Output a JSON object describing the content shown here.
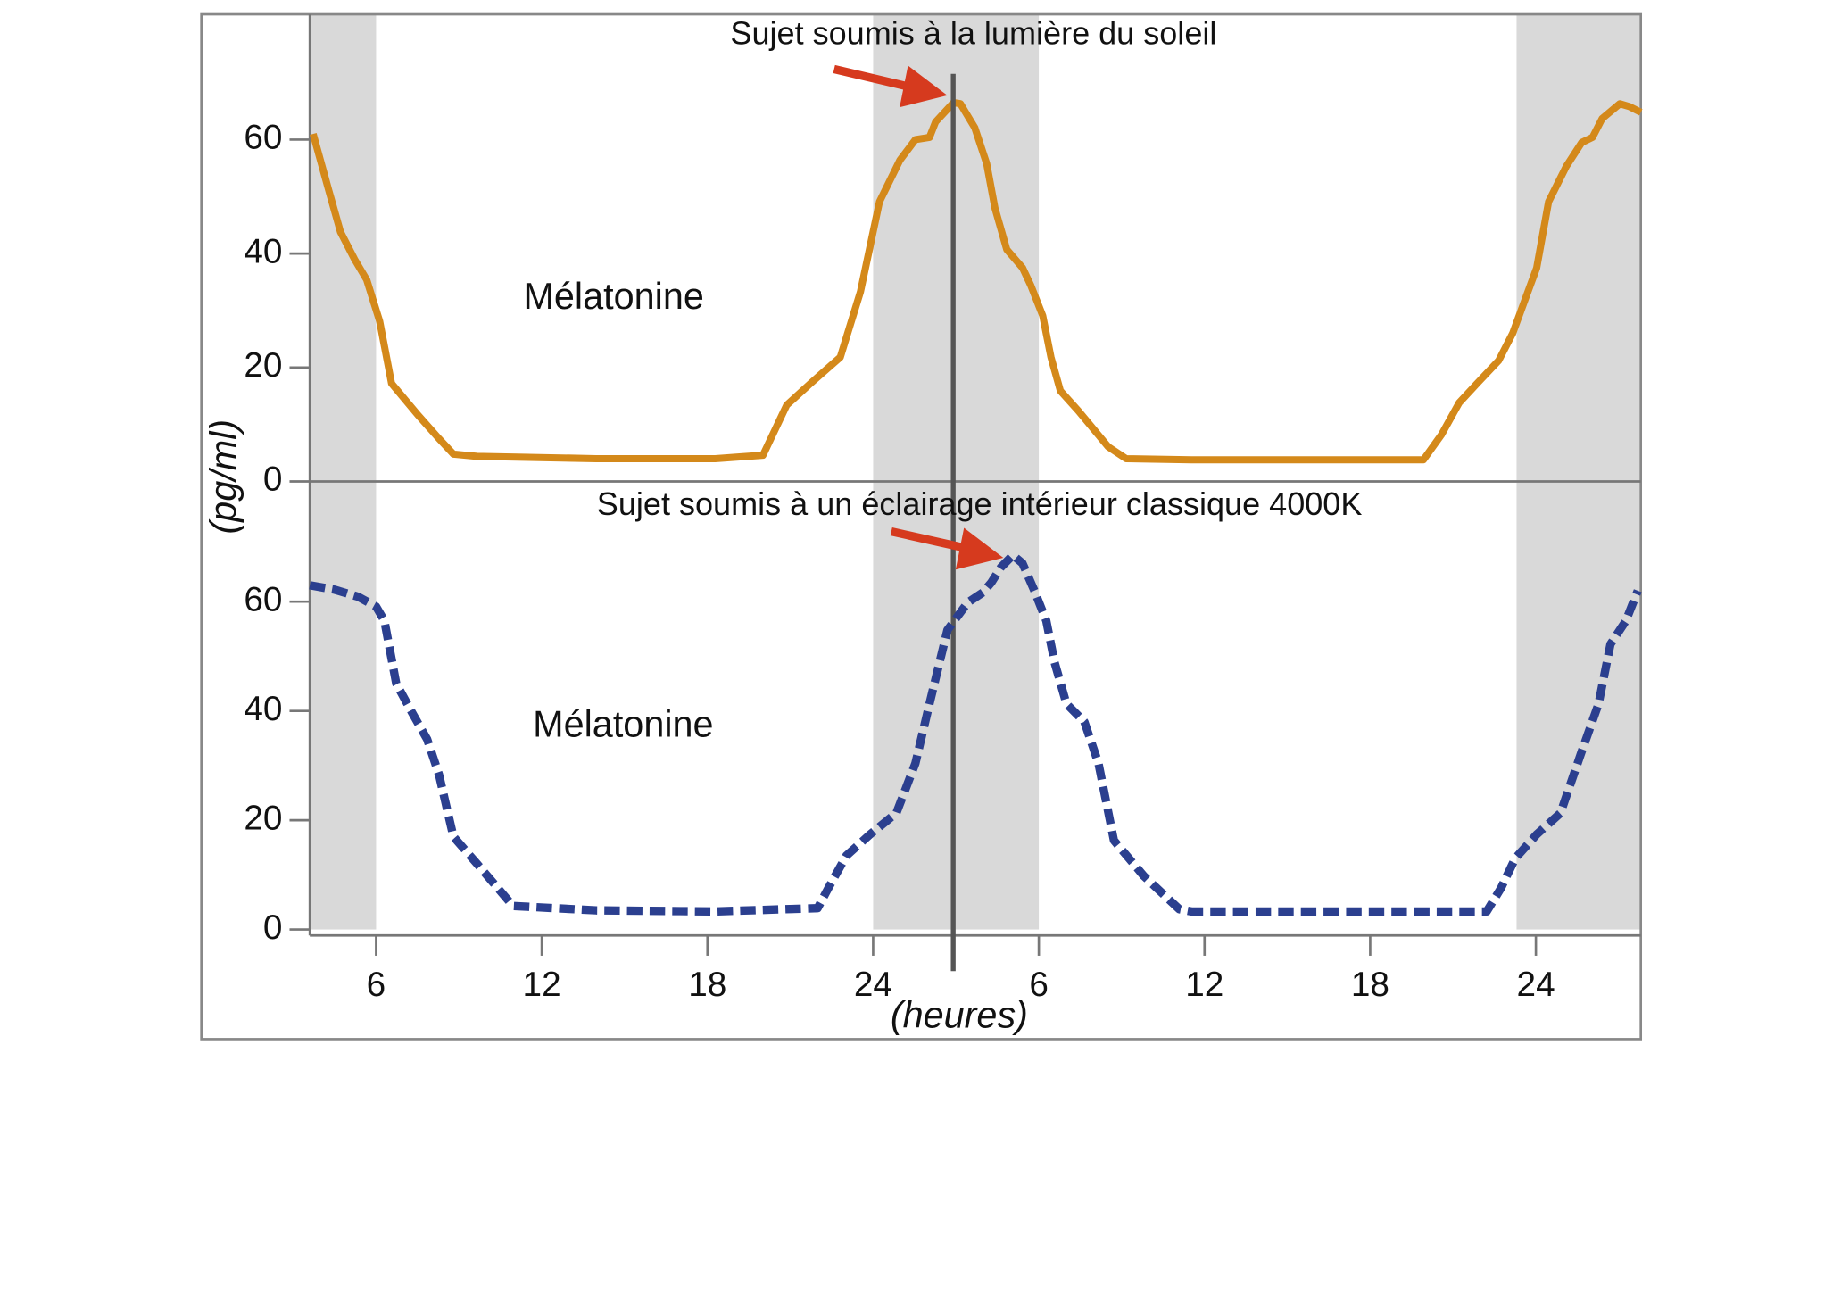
{
  "chart_data": [
    {
      "type": "line",
      "title": "Sujet soumis à la lumière du soleil",
      "ylabel": "(pg/ml)",
      "xlim": [
        3.6,
        51.8
      ],
      "ylim": [
        0,
        82
      ],
      "yticks": [
        0,
        20,
        40,
        60
      ],
      "shaded_x": [
        [
          3.6,
          6
        ],
        [
          24,
          30
        ],
        [
          47.3,
          51.8
        ]
      ],
      "marker_x": 26.9,
      "series": [
        {
          "name": "Mélatonine",
          "color": "#d4891a",
          "line_style": "solid",
          "x": [
            3.72,
            4.28,
            4.71,
            5.22,
            5.66,
            6.13,
            6.56,
            7.51,
            8.28,
            8.8,
            9.66,
            13.97,
            18.28,
            20.01,
            20.87,
            21.73,
            22.81,
            23.54,
            24.23,
            24.97,
            25.53,
            26.04,
            26.26,
            26.91,
            27.16,
            27.68,
            28.11,
            28.41,
            28.84,
            29.41,
            29.71,
            30.14,
            30.44,
            30.78,
            31.43,
            32.51,
            33.16,
            35.53,
            39.84,
            43.93,
            44.58,
            45.22,
            45.87,
            46.65,
            47.16,
            48.03,
            48.46,
            49.1,
            49.66,
            50.05,
            50.4,
            51.04,
            51.39,
            51.8
          ],
          "values": [
            61.0,
            51.2,
            43.8,
            39.0,
            35.4,
            28.1,
            17.2,
            11.7,
            7.5,
            4.8,
            4.4,
            4.0,
            4.0,
            4.6,
            13.4,
            17.2,
            21.8,
            33.3,
            49.1,
            56.4,
            60.0,
            60.4,
            63.1,
            66.5,
            66.3,
            62.1,
            55.8,
            48.0,
            40.7,
            37.5,
            34.4,
            29.1,
            21.8,
            15.9,
            12.4,
            6.1,
            4.0,
            3.8,
            3.8,
            3.8,
            8.2,
            13.8,
            17.2,
            21.2,
            26.0,
            37.5,
            49.1,
            55.3,
            59.5,
            60.4,
            63.7,
            66.3,
            65.8,
            64.8
          ]
        }
      ]
    },
    {
      "type": "line",
      "title": "Sujet soumis à un éclairage intérieur classique 4000K",
      "xlabel": "(heures)",
      "xlim": [
        3.6,
        51.8
      ],
      "ylim": [
        0,
        82
      ],
      "yticks": [
        0,
        20,
        40,
        60
      ],
      "xticks": [
        6,
        12,
        18,
        24,
        {
          "value": 30,
          "label": "6"
        },
        {
          "value": 36,
          "label": "12"
        },
        {
          "value": 42,
          "label": "18"
        },
        {
          "value": 48,
          "label": "24"
        }
      ],
      "shaded_x": [
        [
          3.6,
          6
        ],
        [
          24,
          30
        ],
        [
          47.3,
          51.8
        ]
      ],
      "series": [
        {
          "name": "Mélatonine",
          "color": "#2b3f8f",
          "line_style": "dashed",
          "x": [
            3.6,
            4.49,
            5.35,
            6.0,
            6.3,
            6.73,
            7.29,
            7.85,
            8.28,
            8.8,
            9.66,
            10.96,
            13.97,
            18.28,
            21.99,
            22.38,
            23.03,
            23.89,
            24.84,
            25.53,
            26.04,
            26.69,
            27.42,
            27.98,
            28.28,
            28.63,
            29.06,
            29.41,
            29.84,
            30.27,
            30.57,
            31.0,
            31.65,
            32.16,
            32.72,
            33.8,
            35.09,
            35.53,
            39.84,
            46.22,
            46.74,
            47.25,
            48.03,
            48.89,
            49.66,
            50.27,
            50.7,
            51.26,
            51.69
          ],
          "values": [
            63.0,
            62.2,
            60.9,
            59.1,
            56.5,
            45.0,
            39.8,
            34.8,
            28.3,
            17.0,
            12.0,
            4.3,
            3.5,
            3.3,
            3.9,
            7.6,
            13.5,
            17.4,
            21.3,
            30.4,
            41.3,
            54.8,
            59.8,
            61.7,
            63.5,
            66.3,
            68.5,
            67.0,
            62.0,
            56.5,
            48.9,
            41.3,
            38.0,
            30.4,
            16.3,
            9.8,
            3.7,
            3.3,
            3.3,
            3.3,
            7.6,
            13.0,
            17.4,
            21.3,
            32.6,
            41.3,
            52.2,
            56.5,
            62.0
          ]
        }
      ]
    }
  ]
}
